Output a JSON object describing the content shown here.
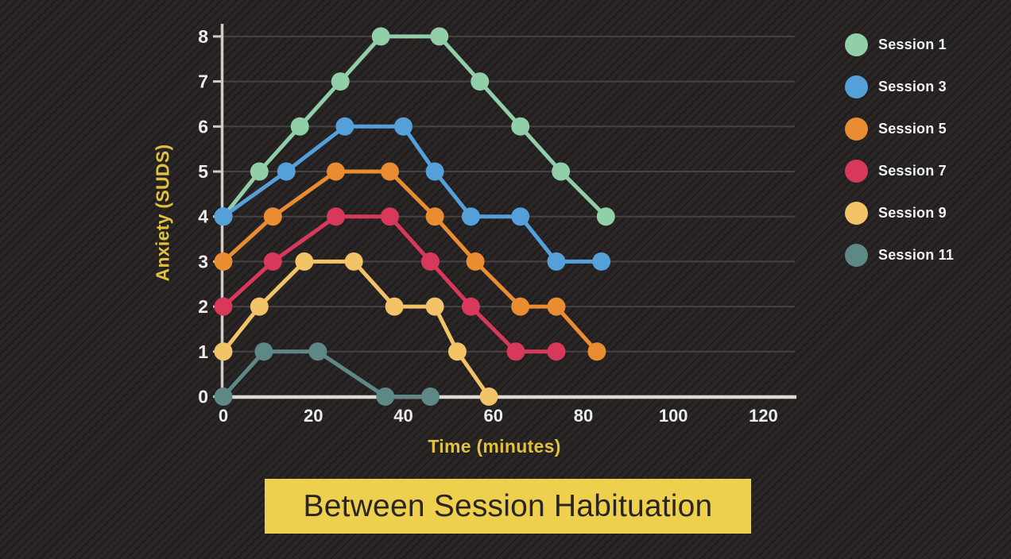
{
  "chart_data": {
    "type": "line",
    "title": "Between Session Habituation",
    "xlabel": "Time (minutes)",
    "ylabel": "Anxiety (SUDS)",
    "x_ticks": [
      0,
      20,
      40,
      60,
      80,
      100,
      120
    ],
    "y_ticks": [
      0,
      1,
      2,
      3,
      4,
      5,
      6,
      7,
      8
    ],
    "xlim": [
      0,
      127
    ],
    "ylim": [
      0,
      8
    ],
    "grid": "horizontal",
    "legend_position": "right",
    "series": [
      {
        "name": "Session 1",
        "color": "#90cfa7",
        "points": [
          [
            0,
            4
          ],
          [
            8,
            5
          ],
          [
            17,
            6
          ],
          [
            26,
            7
          ],
          [
            35,
            8
          ],
          [
            48,
            8
          ],
          [
            57,
            7
          ],
          [
            66,
            6
          ],
          [
            75,
            5
          ],
          [
            85,
            4
          ]
        ]
      },
      {
        "name": "Session 3",
        "color": "#55a0d9",
        "points": [
          [
            0,
            4
          ],
          [
            14,
            5
          ],
          [
            27,
            6
          ],
          [
            40,
            6
          ],
          [
            47,
            5
          ],
          [
            55,
            4
          ],
          [
            66,
            4
          ],
          [
            74,
            3
          ],
          [
            84,
            3
          ]
        ]
      },
      {
        "name": "Session 5",
        "color": "#e98c32",
        "points": [
          [
            0,
            3
          ],
          [
            11,
            4
          ],
          [
            25,
            5
          ],
          [
            37,
            5
          ],
          [
            47,
            4
          ],
          [
            56,
            3
          ],
          [
            66,
            2
          ],
          [
            74,
            2
          ],
          [
            83,
            1
          ]
        ]
      },
      {
        "name": "Session 7",
        "color": "#d8395a",
        "points": [
          [
            0,
            2
          ],
          [
            11,
            3
          ],
          [
            25,
            4
          ],
          [
            37,
            4
          ],
          [
            46,
            3
          ],
          [
            55,
            2
          ],
          [
            65,
            1
          ],
          [
            74,
            1
          ]
        ]
      },
      {
        "name": "Session 9",
        "color": "#f3c368",
        "points": [
          [
            0,
            1
          ],
          [
            8,
            2
          ],
          [
            18,
            3
          ],
          [
            29,
            3
          ],
          [
            38,
            2
          ],
          [
            47,
            2
          ],
          [
            52,
            1
          ],
          [
            59,
            0
          ]
        ]
      },
      {
        "name": "Session 11",
        "color": "#5e8886",
        "points": [
          [
            0,
            0
          ],
          [
            9,
            1
          ],
          [
            21,
            1
          ],
          [
            36,
            0
          ],
          [
            46,
            0
          ]
        ]
      }
    ]
  },
  "colors": {
    "background": "#272324",
    "gridline": "#474242",
    "axis_line": "#cfccc8",
    "axis_line_bright": "#dddad6",
    "tick_text": "#edecea",
    "axis_title_text": "#e2c23c",
    "legend_text": "#f3f2f0",
    "title_banner_bg": "#eed04f",
    "title_banner_text": "#2b2521"
  }
}
